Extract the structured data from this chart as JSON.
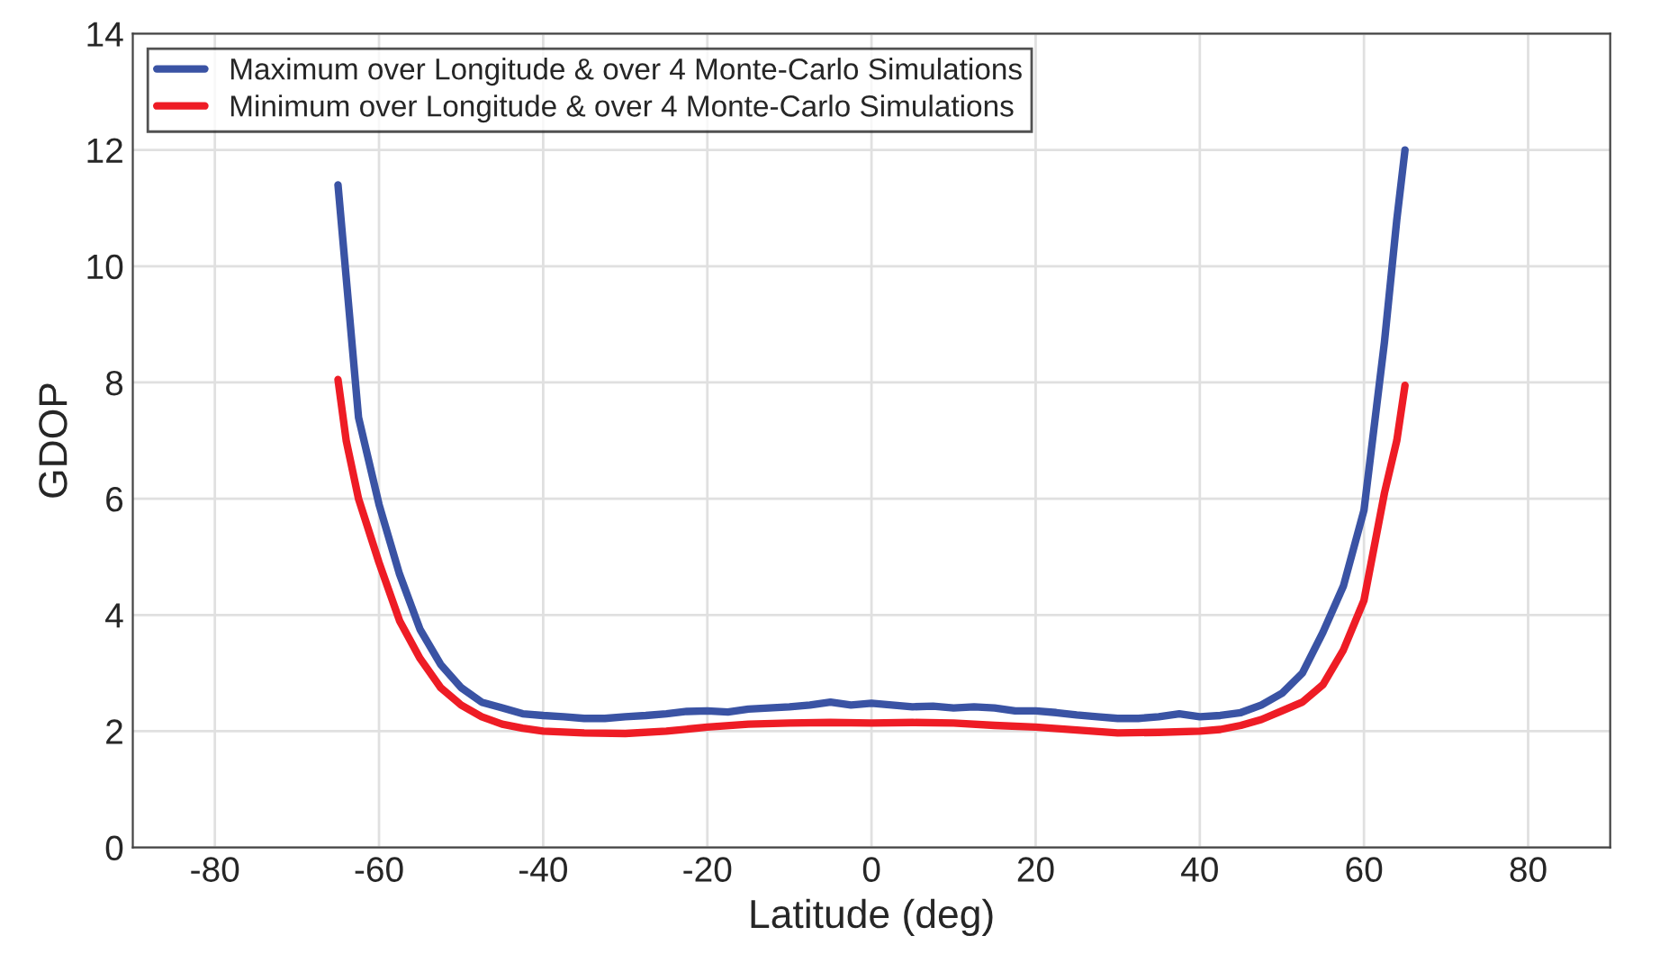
{
  "chart_data": {
    "type": "line",
    "xlabel": "Latitude (deg)",
    "ylabel": "GDOP",
    "xlim": [
      -90,
      90
    ],
    "xticks": [
      -80,
      -60,
      -40,
      -20,
      0,
      20,
      40,
      60,
      80
    ],
    "ylim": [
      0,
      14
    ],
    "yticks": [
      0,
      2,
      4,
      6,
      8,
      10,
      12,
      14
    ],
    "grid": true,
    "legend": "top left",
    "line_style": "solid",
    "series": [
      {
        "name": "Maximum over Longitude & over 4 Monte-Carlo Simulations",
        "color": "#3a53a4",
        "x": [
          -65,
          -64,
          -62.5,
          -60,
          -57.5,
          -55,
          -52.5,
          -50,
          -47.5,
          -45,
          -42.5,
          -40,
          -37.5,
          -35,
          -32.5,
          -30,
          -27.5,
          -25,
          -22.5,
          -20,
          -17.5,
          -15,
          -12.5,
          -10,
          -7.5,
          -5,
          -2.5,
          0,
          2.5,
          5,
          7.5,
          10,
          12.5,
          15,
          17.5,
          20,
          22.5,
          25,
          27.5,
          30,
          32.5,
          35,
          37.5,
          40,
          42.5,
          45,
          47.5,
          50,
          52.5,
          55,
          57.5,
          60,
          62.5,
          64,
          65
        ],
        "values": [
          11.4,
          9.8,
          7.4,
          5.9,
          4.7,
          3.75,
          3.15,
          2.75,
          2.5,
          2.4,
          2.3,
          2.27,
          2.25,
          2.22,
          2.22,
          2.25,
          2.27,
          2.3,
          2.34,
          2.35,
          2.33,
          2.38,
          2.4,
          2.42,
          2.45,
          2.5,
          2.45,
          2.48,
          2.45,
          2.42,
          2.43,
          2.4,
          2.42,
          2.4,
          2.35,
          2.35,
          2.32,
          2.28,
          2.25,
          2.22,
          2.22,
          2.25,
          2.3,
          2.25,
          2.27,
          2.32,
          2.45,
          2.65,
          3.0,
          3.7,
          4.5,
          5.8,
          8.7,
          10.8,
          12.0
        ]
      },
      {
        "name": "Minimum over Longitude & over 4 Monte-Carlo Simulations",
        "color": "#ee1c25",
        "x": [
          -65,
          -64,
          -62.5,
          -60,
          -57.5,
          -55,
          -52.5,
          -50,
          -47.5,
          -45,
          -42.5,
          -40,
          -35,
          -30,
          -25,
          -20,
          -15,
          -10,
          -5,
          0,
          5,
          10,
          15,
          20,
          25,
          30,
          35,
          40,
          42.5,
          45,
          47.5,
          50,
          52.5,
          55,
          57.5,
          60,
          62.5,
          64,
          65
        ],
        "values": [
          8.05,
          7.0,
          6.0,
          4.9,
          3.9,
          3.25,
          2.75,
          2.45,
          2.25,
          2.12,
          2.05,
          2.0,
          1.97,
          1.96,
          2.0,
          2.07,
          2.12,
          2.14,
          2.15,
          2.14,
          2.15,
          2.14,
          2.1,
          2.07,
          2.02,
          1.97,
          1.98,
          2.0,
          2.03,
          2.1,
          2.2,
          2.35,
          2.5,
          2.8,
          3.4,
          4.25,
          6.1,
          7.0,
          7.95
        ]
      }
    ]
  }
}
